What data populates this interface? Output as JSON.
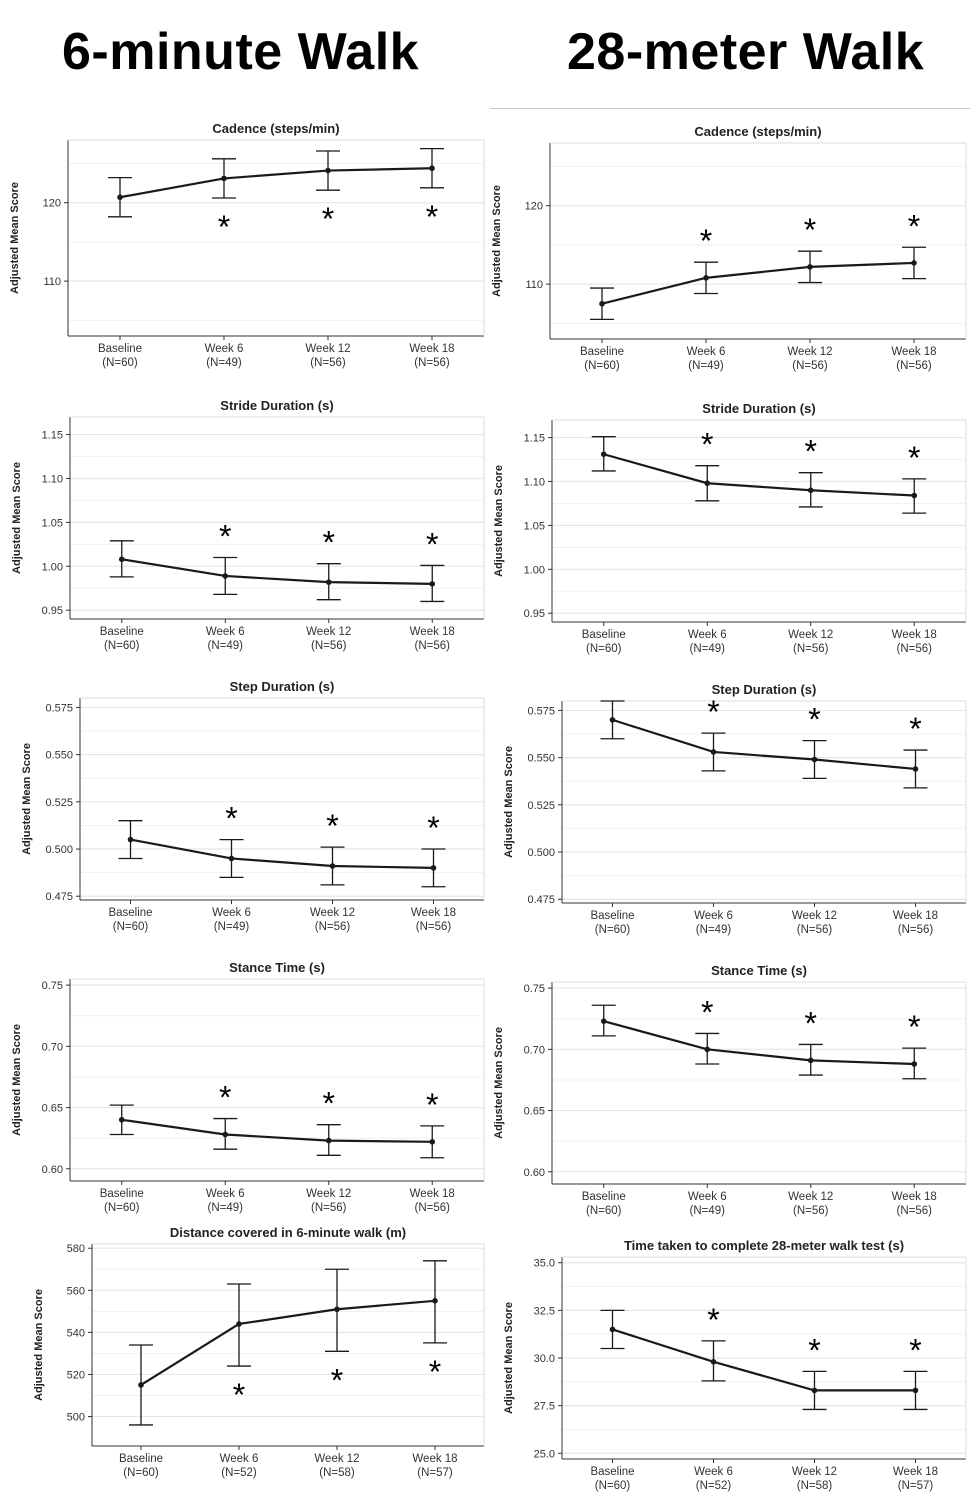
{
  "titles": {
    "left": "6-minute Walk",
    "right": "28-meter Walk"
  },
  "y_axis_label": "Adjusted Mean Score",
  "significance_marker": "*",
  "colors": {
    "line": "#1a1a1a",
    "grid": "#e6e6e6",
    "axis": "#333333",
    "text": "#333333"
  },
  "chart_data": [
    {
      "id": "cad6",
      "type": "line",
      "title": "Cadence (steps/min)",
      "ylabel": "Adjusted Mean Score",
      "categories": [
        "Baseline",
        "Week 6",
        "Week 12",
        "Week 18"
      ],
      "ns": [
        "(N=60)",
        "(N=49)",
        "(N=56)",
        "(N=56)"
      ],
      "values": [
        120.7,
        123.1,
        124.1,
        124.4
      ],
      "lower": [
        118.2,
        120.6,
        121.6,
        121.9
      ],
      "upper": [
        123.2,
        125.6,
        126.6,
        126.9
      ],
      "ylim": [
        103,
        128
      ],
      "ticks": [
        110,
        120
      ],
      "tick_labels": [
        "110",
        "120"
      ],
      "minor": [
        105,
        115,
        125
      ],
      "star": [
        false,
        true,
        true,
        true
      ],
      "star_pos": "below"
    },
    {
      "id": "cad28",
      "type": "line",
      "title": "Cadence (steps/min)",
      "ylabel": "Adjusted Mean Score",
      "categories": [
        "Baseline",
        "Week 6",
        "Week 12",
        "Week 18"
      ],
      "ns": [
        "(N=60)",
        "(N=49)",
        "(N=56)",
        "(N=56)"
      ],
      "values": [
        107.5,
        110.8,
        112.2,
        112.7
      ],
      "lower": [
        105.5,
        108.8,
        110.2,
        110.7
      ],
      "upper": [
        109.5,
        112.8,
        114.2,
        114.7
      ],
      "ylim": [
        103,
        128
      ],
      "ticks": [
        110,
        120
      ],
      "tick_labels": [
        "110",
        "120"
      ],
      "minor": [
        105,
        115,
        125
      ],
      "star": [
        false,
        true,
        true,
        true
      ],
      "star_pos": "above"
    },
    {
      "id": "stride6",
      "type": "line",
      "title": "Stride Duration (s)",
      "ylabel": "Adjusted Mean Score",
      "categories": [
        "Baseline",
        "Week 6",
        "Week 12",
        "Week 18"
      ],
      "ns": [
        "(N=60)",
        "(N=49)",
        "(N=56)",
        "(N=56)"
      ],
      "values": [
        1.008,
        0.989,
        0.982,
        0.98
      ],
      "lower": [
        0.988,
        0.968,
        0.962,
        0.96
      ],
      "upper": [
        1.029,
        1.01,
        1.003,
        1.001
      ],
      "ylim": [
        0.94,
        1.17
      ],
      "ticks": [
        0.95,
        1.0,
        1.05,
        1.1,
        1.15
      ],
      "tick_labels": [
        "0.95",
        "1.00",
        "1.05",
        "1.10",
        "1.15"
      ],
      "minor": [
        0.975,
        1.025,
        1.075,
        1.125
      ],
      "star": [
        false,
        true,
        true,
        true
      ],
      "star_pos": "above"
    },
    {
      "id": "stride28",
      "type": "line",
      "title": "Stride Duration (s)",
      "ylabel": "Adjusted Mean Score",
      "categories": [
        "Baseline",
        "Week 6",
        "Week 12",
        "Week 18"
      ],
      "ns": [
        "(N=60)",
        "(N=49)",
        "(N=56)",
        "(N=56)"
      ],
      "values": [
        1.131,
        1.098,
        1.09,
        1.084
      ],
      "lower": [
        1.112,
        1.078,
        1.071,
        1.064
      ],
      "upper": [
        1.151,
        1.118,
        1.11,
        1.103
      ],
      "ylim": [
        0.94,
        1.17
      ],
      "ticks": [
        0.95,
        1.0,
        1.05,
        1.1,
        1.15
      ],
      "tick_labels": [
        "0.95",
        "1.00",
        "1.05",
        "1.10",
        "1.15"
      ],
      "minor": [
        0.975,
        1.025,
        1.075,
        1.125
      ],
      "star": [
        false,
        true,
        true,
        true
      ],
      "star_pos": "above"
    },
    {
      "id": "step6",
      "type": "line",
      "title": "Step Duration (s)",
      "ylabel": "Adjusted Mean Score",
      "categories": [
        "Baseline",
        "Week 6",
        "Week 12",
        "Week 18"
      ],
      "ns": [
        "(N=60)",
        "(N=49)",
        "(N=56)",
        "(N=56)"
      ],
      "values": [
        0.505,
        0.495,
        0.491,
        0.49
      ],
      "lower": [
        0.495,
        0.485,
        0.481,
        0.48
      ],
      "upper": [
        0.515,
        0.505,
        0.501,
        0.5
      ],
      "ylim": [
        0.473,
        0.58
      ],
      "ticks": [
        0.475,
        0.5,
        0.525,
        0.55,
        0.575
      ],
      "tick_labels": [
        "0.475",
        "0.500",
        "0.525",
        "0.550",
        "0.575"
      ],
      "minor": [
        0.4875,
        0.5125,
        0.5375,
        0.5625
      ],
      "star": [
        false,
        true,
        true,
        true
      ],
      "star_pos": "above"
    },
    {
      "id": "step28",
      "type": "line",
      "title": "Step Duration (s)",
      "ylabel": "Adjusted Mean Score",
      "categories": [
        "Baseline",
        "Week 6",
        "Week 12",
        "Week 18"
      ],
      "ns": [
        "(N=60)",
        "(N=49)",
        "(N=56)",
        "(N=56)"
      ],
      "values": [
        0.57,
        0.553,
        0.549,
        0.544
      ],
      "lower": [
        0.56,
        0.543,
        0.539,
        0.534
      ],
      "upper": [
        0.58,
        0.563,
        0.559,
        0.554
      ],
      "ylim": [
        0.473,
        0.58
      ],
      "ticks": [
        0.475,
        0.5,
        0.525,
        0.55,
        0.575
      ],
      "tick_labels": [
        "0.475",
        "0.500",
        "0.525",
        "0.550",
        "0.575"
      ],
      "minor": [
        0.4875,
        0.5125,
        0.5375,
        0.5625
      ],
      "star": [
        false,
        true,
        true,
        true
      ],
      "star_pos": "above"
    },
    {
      "id": "stance6",
      "type": "line",
      "title": "Stance Time (s)",
      "ylabel": "Adjusted Mean Score",
      "categories": [
        "Baseline",
        "Week 6",
        "Week 12",
        "Week 18"
      ],
      "ns": [
        "(N=60)",
        "(N=49)",
        "(N=56)",
        "(N=56)"
      ],
      "values": [
        0.64,
        0.628,
        0.623,
        0.622
      ],
      "lower": [
        0.628,
        0.616,
        0.611,
        0.609
      ],
      "upper": [
        0.652,
        0.641,
        0.636,
        0.635
      ],
      "ylim": [
        0.59,
        0.755
      ],
      "ticks": [
        0.6,
        0.65,
        0.7,
        0.75
      ],
      "tick_labels": [
        "0.60",
        "0.65",
        "0.70",
        "0.75"
      ],
      "minor": [
        0.625,
        0.675,
        0.725
      ],
      "star": [
        false,
        true,
        true,
        true
      ],
      "star_pos": "above"
    },
    {
      "id": "stance28",
      "type": "line",
      "title": "Stance Time (s)",
      "ylabel": "Adjusted Mean Score",
      "categories": [
        "Baseline",
        "Week 6",
        "Week 12",
        "Week 18"
      ],
      "ns": [
        "(N=60)",
        "(N=49)",
        "(N=56)",
        "(N=56)"
      ],
      "values": [
        0.723,
        0.7,
        0.691,
        0.688
      ],
      "lower": [
        0.711,
        0.688,
        0.679,
        0.676
      ],
      "upper": [
        0.736,
        0.713,
        0.704,
        0.701
      ],
      "ylim": [
        0.59,
        0.755
      ],
      "ticks": [
        0.6,
        0.65,
        0.7,
        0.75
      ],
      "tick_labels": [
        "0.60",
        "0.65",
        "0.70",
        "0.75"
      ],
      "minor": [
        0.625,
        0.675,
        0.725
      ],
      "star": [
        false,
        true,
        true,
        true
      ],
      "star_pos": "above"
    },
    {
      "id": "dist6",
      "type": "line",
      "title": "Distance covered in 6-minute walk (m)",
      "ylabel": "Adjusted Mean Score",
      "categories": [
        "Baseline",
        "Week 6",
        "Week 12",
        "Week 18"
      ],
      "ns": [
        "(N=60)",
        "(N=52)",
        "(N=58)",
        "(N=57)"
      ],
      "values": [
        515,
        544,
        551,
        555
      ],
      "lower": [
        496,
        524,
        531,
        535
      ],
      "upper": [
        534,
        563,
        570,
        574
      ],
      "ylim": [
        486,
        582
      ],
      "ticks": [
        500,
        520,
        540,
        560,
        580
      ],
      "tick_labels": [
        "500",
        "520",
        "540",
        "560",
        "580"
      ],
      "minor": [
        510,
        530,
        550,
        570
      ],
      "star": [
        false,
        true,
        true,
        true
      ],
      "star_pos": "below"
    },
    {
      "id": "time28",
      "type": "line",
      "title": "Time taken to complete 28-meter walk test (s)",
      "ylabel": "Adjusted Mean Score",
      "categories": [
        "Baseline",
        "Week 6",
        "Week 12",
        "Week 18"
      ],
      "ns": [
        "(N=60)",
        "(N=52)",
        "(N=58)",
        "(N=57)"
      ],
      "values": [
        31.5,
        29.8,
        28.3,
        28.3
      ],
      "lower": [
        30.5,
        28.8,
        27.3,
        27.3
      ],
      "upper": [
        32.5,
        30.9,
        29.3,
        29.3
      ],
      "ylim": [
        24.7,
        35.3
      ],
      "ticks": [
        25,
        27.5,
        30,
        32.5,
        35
      ],
      "tick_labels": [
        "25.0",
        "27.5",
        "30.0",
        "32.5",
        "35.0"
      ],
      "minor": [
        26.25,
        28.75,
        31.25,
        33.75
      ],
      "star": [
        false,
        true,
        true,
        true
      ],
      "star_pos": "above"
    }
  ]
}
